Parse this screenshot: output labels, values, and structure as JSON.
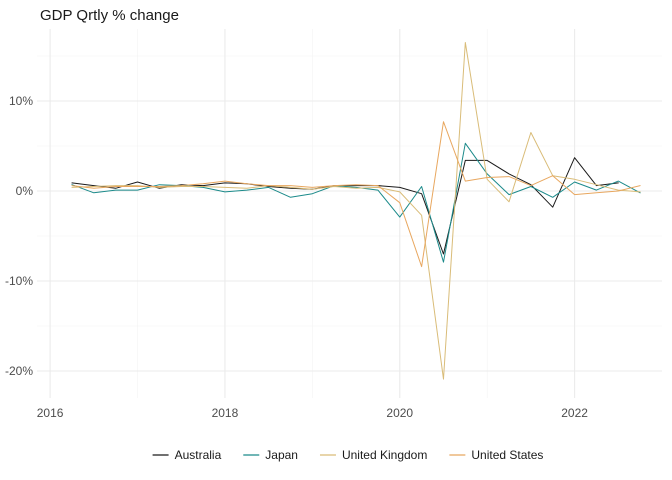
{
  "chart_data": {
    "type": "line",
    "title": "GDP Qrtly % change",
    "xlabel": "",
    "ylabel": "",
    "xlim": [
      2015.85,
      2023.0
    ],
    "ylim": [
      -23,
      18
    ],
    "x_ticks": [
      2016,
      2018,
      2020,
      2022
    ],
    "x_tick_labels": [
      "2016",
      "2018",
      "2020",
      "2022"
    ],
    "y_ticks": [
      -20,
      -10,
      0,
      10
    ],
    "y_tick_labels": [
      "-20%",
      "-10%",
      "0%",
      "10%"
    ],
    "grid": true,
    "legend_position": "bottom",
    "series": [
      {
        "name": "Australia",
        "color": "#1a1a1a",
        "x": [
          2016.25,
          2016.5,
          2016.75,
          2017.0,
          2017.25,
          2017.5,
          2017.75,
          2018.0,
          2018.25,
          2018.5,
          2018.75,
          2019.0,
          2019.25,
          2019.5,
          2019.75,
          2020.0,
          2020.25,
          2020.5,
          2020.75,
          2021.0,
          2021.25,
          2021.5,
          2021.75,
          2022.0,
          2022.25,
          2022.5
        ],
        "values": [
          0.9,
          0.6,
          0.3,
          1.0,
          0.3,
          0.7,
          0.6,
          0.9,
          0.8,
          0.5,
          0.3,
          0.2,
          0.6,
          0.6,
          0.6,
          0.4,
          -0.3,
          -7.0,
          3.4,
          3.4,
          1.9,
          0.7,
          -1.8,
          3.7,
          0.6,
          0.9
        ]
      },
      {
        "name": "Japan",
        "color": "#1b8a8a",
        "x": [
          2016.25,
          2016.5,
          2016.75,
          2017.0,
          2017.25,
          2017.5,
          2017.75,
          2018.0,
          2018.25,
          2018.5,
          2018.75,
          2019.0,
          2019.25,
          2019.5,
          2019.75,
          2020.0,
          2020.25,
          2020.5,
          2020.75,
          2021.0,
          2021.25,
          2021.5,
          2021.75,
          2022.0,
          2022.25,
          2022.5,
          2022.75
        ],
        "values": [
          0.7,
          -0.2,
          0.1,
          0.1,
          0.7,
          0.6,
          0.4,
          -0.1,
          0.1,
          0.4,
          -0.7,
          -0.3,
          0.6,
          0.4,
          0.1,
          -2.9,
          0.5,
          -7.9,
          5.3,
          1.9,
          -0.4,
          0.5,
          -0.7,
          1.0,
          0.1,
          1.1,
          -0.2
        ]
      },
      {
        "name": "United Kingdom",
        "color": "#d9bc78",
        "x": [
          2016.25,
          2016.5,
          2016.75,
          2017.0,
          2017.25,
          2017.5,
          2017.75,
          2018.0,
          2018.25,
          2018.5,
          2018.75,
          2019.0,
          2019.25,
          2019.5,
          2019.75,
          2020.0,
          2020.25,
          2020.5,
          2020.75,
          2021.0,
          2021.25,
          2021.5,
          2021.75,
          2022.0,
          2022.25,
          2022.5,
          2022.75
        ],
        "values": [
          0.4,
          0.5,
          0.6,
          0.6,
          0.4,
          0.5,
          0.5,
          0.4,
          0.3,
          0.6,
          0.4,
          0.2,
          0.5,
          0.3,
          0.4,
          -0.1,
          -2.7,
          -20.9,
          16.5,
          1.3,
          -1.2,
          6.5,
          1.7,
          1.3,
          0.7,
          0.1,
          -0.1
        ]
      },
      {
        "name": "United States",
        "color": "#e8a75f",
        "x": [
          2016.25,
          2016.5,
          2016.75,
          2017.0,
          2017.25,
          2017.5,
          2017.75,
          2018.0,
          2018.25,
          2018.5,
          2018.75,
          2019.0,
          2019.25,
          2019.5,
          2019.75,
          2020.0,
          2020.25,
          2020.5,
          2020.75,
          2021.0,
          2021.25,
          2021.5,
          2021.75,
          2022.0,
          2022.25,
          2022.5,
          2022.75
        ],
        "values": [
          0.6,
          0.3,
          0.5,
          0.5,
          0.5,
          0.6,
          0.8,
          1.1,
          0.8,
          0.6,
          0.6,
          0.4,
          0.6,
          0.7,
          0.6,
          -1.3,
          -8.4,
          7.7,
          1.1,
          1.5,
          1.6,
          0.6,
          1.7,
          -0.4,
          -0.2,
          0.0,
          0.6
        ]
      }
    ]
  }
}
